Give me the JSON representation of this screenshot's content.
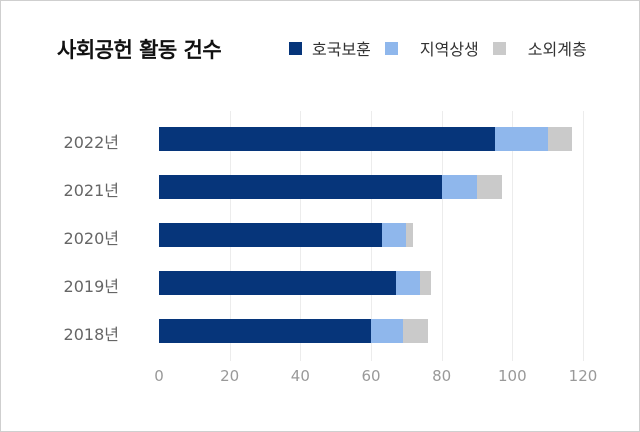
{
  "title": "사회공헌 활동 건수",
  "legend": [
    {
      "label": "호국보훈",
      "color": "#06357a"
    },
    {
      "label": "지역상생",
      "color": "#8fb7ec"
    },
    {
      "label": "소외계층",
      "color": "#cacaca"
    }
  ],
  "chart_data": {
    "type": "bar",
    "orientation": "horizontal",
    "stacked": true,
    "title": "사회공헌 활동 건수",
    "xlabel": "",
    "ylabel": "",
    "xlim": [
      0,
      120
    ],
    "x_ticks": [
      "0",
      "20",
      "40",
      "60",
      "80",
      "100",
      "120"
    ],
    "grid": "vertical",
    "legend_position": "top-right",
    "categories": [
      "2022년",
      "2021년",
      "2020년",
      "2019년",
      "2018년"
    ],
    "series": [
      {
        "name": "호국보훈",
        "color": "#06357a",
        "values": [
          95,
          80,
          63,
          67,
          60
        ]
      },
      {
        "name": "지역상생",
        "color": "#8fb7ec",
        "values": [
          15,
          10,
          7,
          7,
          9
        ]
      },
      {
        "name": "소외계층",
        "color": "#cacaca",
        "values": [
          7,
          7,
          2,
          3,
          7
        ]
      }
    ]
  }
}
